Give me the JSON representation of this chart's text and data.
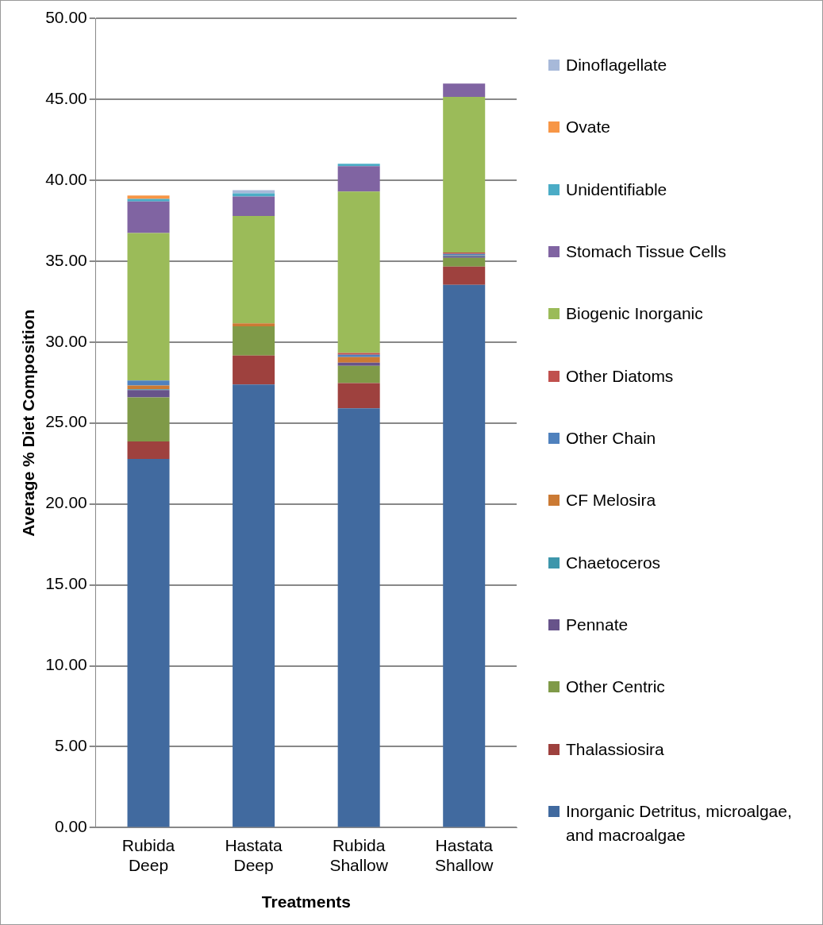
{
  "chart_data": {
    "type": "bar",
    "stacked": true,
    "xlabel": "Treatments",
    "ylabel": "Average % Diet Composition",
    "categories": [
      "Rubida Deep",
      "Hastata Deep",
      "Rubida Shallow",
      "Hastata Shallow"
    ],
    "series": [
      {
        "name": "Inorganic Detritus, microalgae, and macroalgae",
        "color": "#416a9f",
        "values": [
          22.78,
          27.38,
          25.91,
          33.53
        ]
      },
      {
        "name": "Thalassiosira",
        "color": "#9e413e",
        "values": [
          1.08,
          1.79,
          1.55,
          1.13
        ]
      },
      {
        "name": "Other Centric",
        "color": "#7f9a48",
        "values": [
          2.72,
          1.8,
          1.07,
          0.54
        ]
      },
      {
        "name": "Pennate",
        "color": "#67538a",
        "values": [
          0.45,
          0,
          0.19,
          0.1
        ]
      },
      {
        "name": "Chaetoceros",
        "color": "#3d96ab",
        "values": [
          0.05,
          0,
          0,
          0.03
        ]
      },
      {
        "name": "CF Melosira",
        "color": "#cb7a34",
        "values": [
          0.24,
          0.18,
          0.35,
          0.02
        ]
      },
      {
        "name": "Other Chain",
        "color": "#4f81bd",
        "values": [
          0.3,
          0,
          0.14,
          0.1
        ]
      },
      {
        "name": "Other Diatoms",
        "color": "#c0504d",
        "values": [
          0,
          0,
          0.12,
          0.08
        ]
      },
      {
        "name": "Biogenic Inorganic",
        "color": "#9bbb59",
        "values": [
          9.11,
          6.64,
          9.96,
          9.61
        ]
      },
      {
        "name": "Stomach Tissue Cells",
        "color": "#8064a2",
        "values": [
          1.95,
          1.2,
          1.58,
          0.82
        ]
      },
      {
        "name": "Unidentifiable",
        "color": "#4bacc6",
        "values": [
          0.16,
          0.19,
          0.14,
          0
        ]
      },
      {
        "name": "Ovate",
        "color": "#f79646",
        "values": [
          0.21,
          0,
          0,
          0
        ]
      },
      {
        "name": "Dinoflagellate",
        "color": "#a7b9d9",
        "values": [
          0,
          0.2,
          0,
          0
        ]
      }
    ],
    "ylim": [
      0,
      50
    ],
    "yticks": [
      {
        "value": 0,
        "label": "0.00"
      },
      {
        "value": 5,
        "label": "5.00"
      },
      {
        "value": 10,
        "label": "10.00"
      },
      {
        "value": 15,
        "label": "15.00"
      },
      {
        "value": 20,
        "label": "20.00"
      },
      {
        "value": 25,
        "label": "25.00"
      },
      {
        "value": 30,
        "label": "30.00"
      },
      {
        "value": 35,
        "label": "35.00"
      },
      {
        "value": 40,
        "label": "40.00"
      },
      {
        "value": 45,
        "label": "45.00"
      },
      {
        "value": 50,
        "label": "50.00"
      }
    ],
    "grid": "y",
    "legend": "right"
  }
}
